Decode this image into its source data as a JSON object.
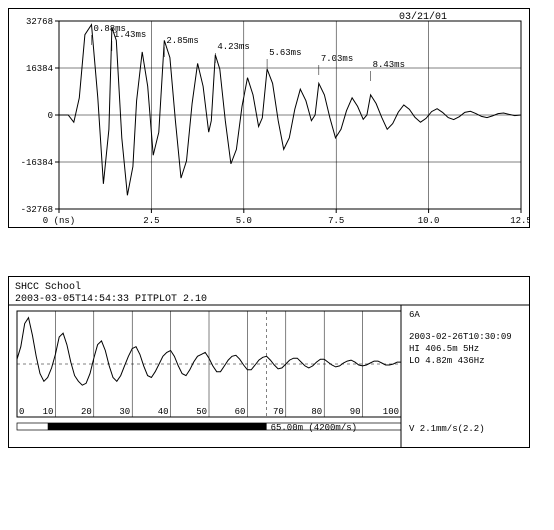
{
  "top_chart": {
    "type": "line",
    "date_label": "03/21/01",
    "x_label_prefix": "(ns)",
    "xlim": [
      0,
      12.5
    ],
    "xtick_step": 2.5,
    "ylim": [
      -32768,
      32768
    ],
    "yticks": [
      -32768,
      -16384,
      0,
      16384,
      32768
    ],
    "grid_color": "#000000",
    "background_color": "#ffffff",
    "signal_color": "#000000",
    "tick_fontsize": 9,
    "peak_label_fontsize": 9,
    "peaks": [
      {
        "x": 0.88,
        "label": "0.88ms"
      },
      {
        "x": 1.43,
        "label": "1.43ms"
      },
      {
        "x": 2.85,
        "label": "2.85ms"
      },
      {
        "x": 4.23,
        "label": "4.23ms"
      },
      {
        "x": 5.63,
        "label": "5.63ms"
      },
      {
        "x": 7.03,
        "label": "7.03ms"
      },
      {
        "x": 8.43,
        "label": "8.43ms"
      }
    ],
    "signal": [
      [
        0.0,
        0
      ],
      [
        0.1,
        0
      ],
      [
        0.2,
        0
      ],
      [
        0.25,
        0
      ],
      [
        0.4,
        -2500
      ],
      [
        0.55,
        6000
      ],
      [
        0.7,
        28000
      ],
      [
        0.88,
        31500
      ],
      [
        1.05,
        6000
      ],
      [
        1.2,
        -24000
      ],
      [
        1.35,
        -5000
      ],
      [
        1.43,
        30500
      ],
      [
        1.55,
        26000
      ],
      [
        1.7,
        -8000
      ],
      [
        1.85,
        -28000
      ],
      [
        2.0,
        -18000
      ],
      [
        2.1,
        5000
      ],
      [
        2.25,
        22000
      ],
      [
        2.4,
        10000
      ],
      [
        2.55,
        -14000
      ],
      [
        2.7,
        -6000
      ],
      [
        2.85,
        26000
      ],
      [
        3.0,
        20000
      ],
      [
        3.15,
        -2000
      ],
      [
        3.3,
        -22000
      ],
      [
        3.45,
        -16000
      ],
      [
        3.6,
        4000
      ],
      [
        3.75,
        18000
      ],
      [
        3.9,
        10000
      ],
      [
        4.05,
        -6000
      ],
      [
        4.12,
        -2000
      ],
      [
        4.23,
        21000
      ],
      [
        4.35,
        16000
      ],
      [
        4.5,
        -2000
      ],
      [
        4.65,
        -17000
      ],
      [
        4.8,
        -12000
      ],
      [
        4.95,
        3000
      ],
      [
        5.1,
        13000
      ],
      [
        5.25,
        7000
      ],
      [
        5.4,
        -4000
      ],
      [
        5.5,
        -1000
      ],
      [
        5.63,
        16000
      ],
      [
        5.78,
        11000
      ],
      [
        5.93,
        -2000
      ],
      [
        6.08,
        -12000
      ],
      [
        6.23,
        -8000
      ],
      [
        6.38,
        2000
      ],
      [
        6.53,
        9000
      ],
      [
        6.68,
        5000
      ],
      [
        6.83,
        -2000
      ],
      [
        6.93,
        0
      ],
      [
        7.03,
        11000
      ],
      [
        7.18,
        7000
      ],
      [
        7.33,
        -1000
      ],
      [
        7.48,
        -8000
      ],
      [
        7.63,
        -5000
      ],
      [
        7.78,
        1500
      ],
      [
        7.93,
        6000
      ],
      [
        8.08,
        3000
      ],
      [
        8.23,
        -1500
      ],
      [
        8.33,
        0
      ],
      [
        8.43,
        7000
      ],
      [
        8.58,
        4000
      ],
      [
        8.73,
        -800
      ],
      [
        8.88,
        -5000
      ],
      [
        9.03,
        -3000
      ],
      [
        9.18,
        1000
      ],
      [
        9.33,
        3500
      ],
      [
        9.48,
        2000
      ],
      [
        9.63,
        -800
      ],
      [
        9.78,
        -2500
      ],
      [
        9.93,
        -1200
      ],
      [
        10.08,
        1200
      ],
      [
        10.23,
        2200
      ],
      [
        10.38,
        900
      ],
      [
        10.53,
        -900
      ],
      [
        10.68,
        -1600
      ],
      [
        10.83,
        -600
      ],
      [
        10.98,
        900
      ],
      [
        11.13,
        1300
      ],
      [
        11.28,
        500
      ],
      [
        11.43,
        -500
      ],
      [
        11.58,
        -900
      ],
      [
        11.73,
        -300
      ],
      [
        11.88,
        500
      ],
      [
        12.03,
        700
      ],
      [
        12.18,
        200
      ],
      [
        12.33,
        -200
      ],
      [
        12.5,
        0
      ]
    ]
  },
  "bottom_chart": {
    "type": "line",
    "header_line1": "SHCC School",
    "header_line2": "2003-03-05T14:54:33 PITPLOT 2.10",
    "label_6A": "6A",
    "readout_date": "2003-02-26T10:30:09",
    "readout_hi": "HI  406.5m    5Hz",
    "readout_lo": "LO   4.82m  436Hz",
    "readout_vel": "V   2.1mm/s(2.2)",
    "depth_label": "65.00m (4200m/s)",
    "xlim": [
      0,
      100
    ],
    "xtick_step": 10,
    "grid_color": "#000000",
    "background_color": "#ffffff",
    "signal_color": "#000000",
    "bar_start": 8,
    "bar_end": 65,
    "signal": [
      [
        0,
        5
      ],
      [
        1,
        18
      ],
      [
        2,
        42
      ],
      [
        3,
        48
      ],
      [
        4,
        30
      ],
      [
        5,
        8
      ],
      [
        6,
        -10
      ],
      [
        7,
        -18
      ],
      [
        8,
        -14
      ],
      [
        9,
        -4
      ],
      [
        10,
        10
      ],
      [
        11,
        28
      ],
      [
        12,
        32
      ],
      [
        13,
        20
      ],
      [
        14,
        2
      ],
      [
        15,
        -12
      ],
      [
        16,
        -18
      ],
      [
        17,
        -22
      ],
      [
        18,
        -20
      ],
      [
        19,
        -10
      ],
      [
        20,
        6
      ],
      [
        21,
        20
      ],
      [
        22,
        24
      ],
      [
        23,
        14
      ],
      [
        24,
        -2
      ],
      [
        25,
        -14
      ],
      [
        26,
        -18
      ],
      [
        27,
        -12
      ],
      [
        28,
        -2
      ],
      [
        29,
        8
      ],
      [
        30,
        16
      ],
      [
        31,
        18
      ],
      [
        32,
        10
      ],
      [
        33,
        -2
      ],
      [
        34,
        -12
      ],
      [
        35,
        -14
      ],
      [
        36,
        -8
      ],
      [
        37,
        0
      ],
      [
        38,
        8
      ],
      [
        39,
        12
      ],
      [
        40,
        14
      ],
      [
        41,
        8
      ],
      [
        42,
        -2
      ],
      [
        43,
        -10
      ],
      [
        44,
        -12
      ],
      [
        45,
        -6
      ],
      [
        46,
        2
      ],
      [
        47,
        8
      ],
      [
        48,
        10
      ],
      [
        49,
        12
      ],
      [
        50,
        6
      ],
      [
        51,
        -2
      ],
      [
        52,
        -8
      ],
      [
        53,
        -8
      ],
      [
        54,
        -2
      ],
      [
        55,
        4
      ],
      [
        56,
        8
      ],
      [
        57,
        9
      ],
      [
        58,
        5
      ],
      [
        59,
        -1
      ],
      [
        60,
        -6
      ],
      [
        61,
        -6
      ],
      [
        62,
        -1
      ],
      [
        63,
        4
      ],
      [
        64,
        7
      ],
      [
        65,
        8
      ],
      [
        66,
        4
      ],
      [
        67,
        -1
      ],
      [
        68,
        -5
      ],
      [
        69,
        -4
      ],
      [
        70,
        0
      ],
      [
        71,
        4
      ],
      [
        72,
        6
      ],
      [
        73,
        6
      ],
      [
        74,
        2
      ],
      [
        75,
        -2
      ],
      [
        76,
        -4
      ],
      [
        77,
        -2
      ],
      [
        78,
        2
      ],
      [
        79,
        5
      ],
      [
        80,
        5
      ],
      [
        81,
        2
      ],
      [
        82,
        -1
      ],
      [
        83,
        -3
      ],
      [
        84,
        -2
      ],
      [
        85,
        1
      ],
      [
        86,
        3
      ],
      [
        87,
        4
      ],
      [
        88,
        2
      ],
      [
        89,
        -1
      ],
      [
        90,
        -2
      ],
      [
        91,
        -1
      ],
      [
        92,
        1
      ],
      [
        93,
        3
      ],
      [
        94,
        3
      ],
      [
        95,
        1
      ],
      [
        96,
        -1
      ],
      [
        97,
        -1
      ],
      [
        98,
        0
      ],
      [
        99,
        2
      ],
      [
        100,
        2
      ]
    ]
  }
}
